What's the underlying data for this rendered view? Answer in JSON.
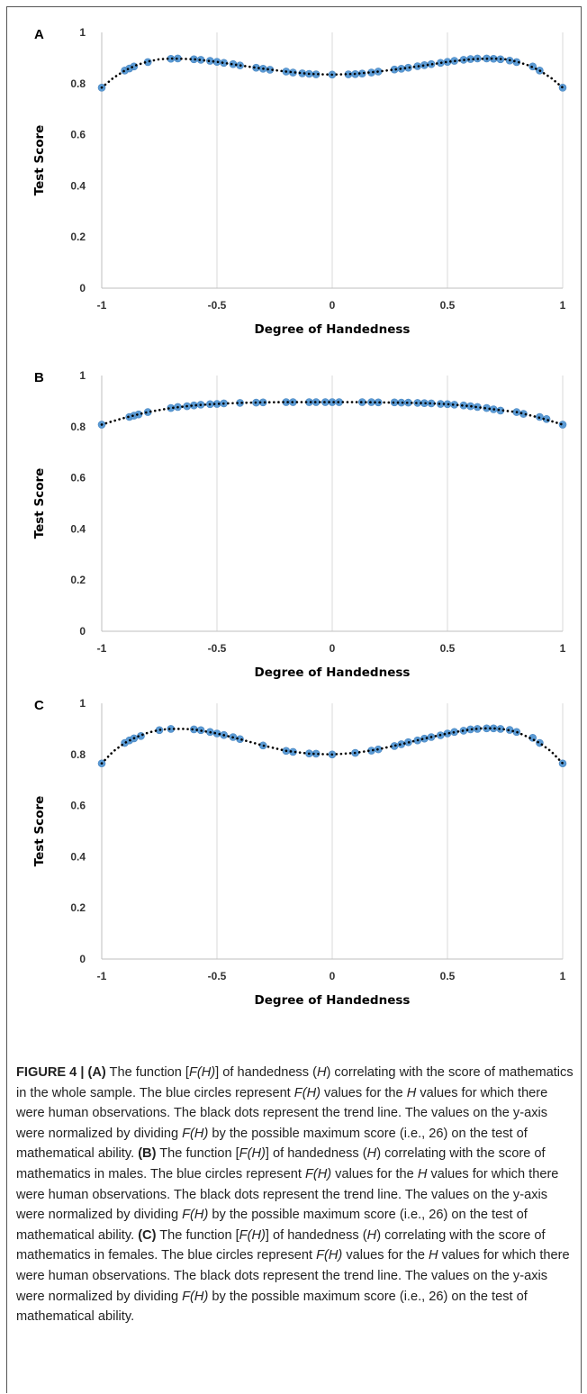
{
  "figure_number_label": "FIGURE 4 |",
  "caption": {
    "parts": [
      {
        "b": "FIGURE 4 | (A)"
      },
      {
        "t": " The function ["
      },
      {
        "i": "F(H)"
      },
      {
        "t": "] of handedness ("
      },
      {
        "i": "H"
      },
      {
        "t": ") correlating with the score of mathematics in the whole sample. The blue circles represent "
      },
      {
        "i": "F(H)"
      },
      {
        "t": " values for the "
      },
      {
        "i": "H"
      },
      {
        "t": " values for which there were human observations. The black dots represent the trend line. The values on the y-axis were normalized by dividing "
      },
      {
        "i": "F(H)"
      },
      {
        "t": " by the possible maximum score (i.e., 26) on the test of mathematical ability. "
      },
      {
        "b": "(B)"
      },
      {
        "t": " The function ["
      },
      {
        "i": "F(H)"
      },
      {
        "t": "] of handedness ("
      },
      {
        "i": "H"
      },
      {
        "t": ") correlating with the score of mathematics in males. The blue circles represent "
      },
      {
        "i": "F(H)"
      },
      {
        "t": " values for the "
      },
      {
        "i": "H"
      },
      {
        "t": " values for which there were human observations. The black dots represent the trend line. The values on the y-axis were normalized by dividing "
      },
      {
        "i": "F(H)"
      },
      {
        "t": " by the possible maximum score (i.e., 26) on the test of mathematical ability. "
      },
      {
        "b": "(C)"
      },
      {
        "t": " The function ["
      },
      {
        "i": "F(H)"
      },
      {
        "t": "] of handedness ("
      },
      {
        "i": "H"
      },
      {
        "t": ") correlating with the score of mathematics in females. The blue circles represent "
      },
      {
        "i": "F(H)"
      },
      {
        "t": " values for the "
      },
      {
        "i": "H"
      },
      {
        "t": " values for which there were human observations. The black dots represent the trend line. The values on the y-axis were normalized by dividing "
      },
      {
        "i": "F(H)"
      },
      {
        "t": " by the possible maximum score (i.e., 26) on the test of mathematical ability."
      }
    ]
  },
  "colors": {
    "observation": "#5b9bd5",
    "trend": "#000000",
    "grid": "#d9d9d9",
    "axis": "#bfbfbf"
  },
  "chart_data": [
    {
      "panel": "A",
      "type": "scatter",
      "xlabel": "Degree of Handedness",
      "ylabel": "Test Score",
      "xlim": [
        -1,
        1
      ],
      "ylim": [
        0,
        1
      ],
      "x_ticks": [
        "-1",
        "-0.5",
        "0",
        "0.5",
        "1"
      ],
      "y_ticks": [
        "0",
        "0.2",
        "0.4",
        "0.6",
        "0.8",
        "1"
      ],
      "grid": "vertical",
      "series": [
        {
          "role": "observations",
          "marker": "blue-circle",
          "x": [
            -1,
            -0.9,
            -0.88,
            -0.86,
            -0.8,
            -0.7,
            -0.67,
            -0.6,
            -0.57,
            -0.53,
            -0.5,
            -0.47,
            -0.43,
            -0.4,
            -0.33,
            -0.3,
            -0.27,
            -0.2,
            -0.17,
            -0.13,
            -0.1,
            -0.07,
            0,
            0.07,
            0.1,
            0.13,
            0.17,
            0.2,
            0.27,
            0.3,
            0.33,
            0.37,
            0.4,
            0.43,
            0.47,
            0.5,
            0.53,
            0.57,
            0.6,
            0.63,
            0.67,
            0.7,
            0.73,
            0.77,
            0.8,
            0.87,
            0.9,
            1
          ],
          "y": [
            0.784,
            0.851,
            0.859,
            0.867,
            0.884,
            0.897,
            0.898,
            0.895,
            0.893,
            0.889,
            0.885,
            0.881,
            0.876,
            0.871,
            0.862,
            0.858,
            0.854,
            0.847,
            0.843,
            0.84,
            0.838,
            0.836,
            0.835,
            0.836,
            0.837,
            0.839,
            0.843,
            0.847,
            0.855,
            0.858,
            0.862,
            0.868,
            0.872,
            0.876,
            0.881,
            0.885,
            0.889,
            0.893,
            0.896,
            0.898,
            0.898,
            0.897,
            0.895,
            0.89,
            0.884,
            0.867,
            0.851,
            0.784
          ]
        },
        {
          "role": "trend",
          "marker": "black-dots",
          "x": [
            -1,
            -0.95,
            -0.9,
            -0.85,
            -0.8,
            -0.75,
            -0.7,
            -0.65,
            -0.6,
            -0.5,
            -0.4,
            -0.3,
            -0.2,
            -0.1,
            0,
            0.1,
            0.2,
            0.3,
            0.4,
            0.5,
            0.6,
            0.65,
            0.7,
            0.75,
            0.8,
            0.85,
            0.9,
            0.95,
            1
          ],
          "y": [
            0.784,
            0.822,
            0.851,
            0.872,
            0.886,
            0.895,
            0.898,
            0.897,
            0.895,
            0.885,
            0.871,
            0.858,
            0.847,
            0.838,
            0.835,
            0.838,
            0.847,
            0.858,
            0.871,
            0.885,
            0.895,
            0.897,
            0.898,
            0.895,
            0.886,
            0.872,
            0.851,
            0.822,
            0.784
          ]
        }
      ]
    },
    {
      "panel": "B",
      "type": "scatter",
      "xlabel": "Degree of Handedness",
      "ylabel": "Test Score",
      "xlim": [
        -1,
        1
      ],
      "ylim": [
        0,
        1
      ],
      "x_ticks": [
        "-1",
        "-0.5",
        "0",
        "0.5",
        "1"
      ],
      "y_ticks": [
        "0",
        "0.2",
        "0.4",
        "0.6",
        "0.8",
        "1"
      ],
      "grid": "vertical",
      "series": [
        {
          "role": "observations",
          "marker": "blue-circle",
          "x": [
            -1,
            -0.88,
            -0.86,
            -0.84,
            -0.8,
            -0.7,
            -0.67,
            -0.63,
            -0.6,
            -0.57,
            -0.53,
            -0.5,
            -0.47,
            -0.4,
            -0.33,
            -0.3,
            -0.2,
            -0.17,
            -0.1,
            -0.07,
            -0.03,
            0,
            0.03,
            0.13,
            0.17,
            0.2,
            0.27,
            0.3,
            0.33,
            0.37,
            0.4,
            0.43,
            0.47,
            0.5,
            0.53,
            0.57,
            0.6,
            0.63,
            0.67,
            0.7,
            0.73,
            0.8,
            0.83,
            0.9,
            0.93,
            1
          ],
          "y": [
            0.808,
            0.838,
            0.843,
            0.848,
            0.857,
            0.873,
            0.877,
            0.88,
            0.883,
            0.886,
            0.888,
            0.889,
            0.891,
            0.893,
            0.894,
            0.895,
            0.896,
            0.896,
            0.896,
            0.896,
            0.896,
            0.896,
            0.896,
            0.896,
            0.896,
            0.895,
            0.895,
            0.894,
            0.894,
            0.893,
            0.892,
            0.891,
            0.889,
            0.888,
            0.886,
            0.883,
            0.88,
            0.877,
            0.873,
            0.868,
            0.863,
            0.857,
            0.85,
            0.838,
            0.83,
            0.808
          ]
        },
        {
          "role": "trend",
          "marker": "black-dots",
          "x": [
            -1,
            -0.95,
            -0.9,
            -0.85,
            -0.8,
            -0.7,
            -0.6,
            -0.5,
            -0.4,
            -0.3,
            -0.2,
            -0.1,
            0,
            0.1,
            0.2,
            0.3,
            0.4,
            0.5,
            0.6,
            0.7,
            0.8,
            0.85,
            0.9,
            0.95,
            1
          ],
          "y": [
            0.808,
            0.822,
            0.835,
            0.846,
            0.857,
            0.873,
            0.883,
            0.889,
            0.893,
            0.895,
            0.896,
            0.896,
            0.896,
            0.896,
            0.895,
            0.894,
            0.892,
            0.888,
            0.88,
            0.868,
            0.857,
            0.846,
            0.835,
            0.822,
            0.808
          ]
        }
      ]
    },
    {
      "panel": "C",
      "type": "scatter",
      "xlabel": "Degree of Handedness",
      "ylabel": "Test Score",
      "xlim": [
        -1,
        1
      ],
      "ylim": [
        0,
        1
      ],
      "x_ticks": [
        "-1",
        "-0.5",
        "0",
        "0.5",
        "1"
      ],
      "y_ticks": [
        "0",
        "0.2",
        "0.4",
        "0.6",
        "0.8",
        "1"
      ],
      "grid": "vertical",
      "series": [
        {
          "role": "observations",
          "marker": "blue-circle",
          "x": [
            -1,
            -0.9,
            -0.88,
            -0.86,
            -0.83,
            -0.75,
            -0.7,
            -0.6,
            -0.57,
            -0.53,
            -0.5,
            -0.47,
            -0.43,
            -0.4,
            -0.3,
            -0.2,
            -0.17,
            -0.1,
            -0.07,
            0,
            0.1,
            0.17,
            0.2,
            0.27,
            0.3,
            0.33,
            0.37,
            0.4,
            0.43,
            0.47,
            0.5,
            0.53,
            0.57,
            0.6,
            0.63,
            0.67,
            0.7,
            0.73,
            0.77,
            0.8,
            0.87,
            0.9,
            1
          ],
          "y": [
            0.765,
            0.845,
            0.855,
            0.863,
            0.872,
            0.895,
            0.9,
            0.898,
            0.895,
            0.888,
            0.882,
            0.876,
            0.868,
            0.86,
            0.835,
            0.814,
            0.81,
            0.804,
            0.803,
            0.8,
            0.806,
            0.815,
            0.82,
            0.833,
            0.84,
            0.848,
            0.855,
            0.862,
            0.868,
            0.875,
            0.882,
            0.888,
            0.893,
            0.898,
            0.9,
            0.902,
            0.902,
            0.9,
            0.896,
            0.888,
            0.865,
            0.845,
            0.765
          ]
        },
        {
          "role": "trend",
          "marker": "black-dots",
          "x": [
            -1,
            -0.95,
            -0.9,
            -0.85,
            -0.8,
            -0.75,
            -0.7,
            -0.65,
            -0.6,
            -0.5,
            -0.4,
            -0.3,
            -0.2,
            -0.1,
            0,
            0.1,
            0.2,
            0.3,
            0.4,
            0.5,
            0.6,
            0.65,
            0.7,
            0.75,
            0.8,
            0.85,
            0.9,
            0.95,
            1
          ],
          "y": [
            0.765,
            0.812,
            0.845,
            0.868,
            0.885,
            0.896,
            0.9,
            0.9,
            0.898,
            0.882,
            0.86,
            0.835,
            0.814,
            0.803,
            0.8,
            0.806,
            0.82,
            0.84,
            0.862,
            0.882,
            0.898,
            0.902,
            0.902,
            0.898,
            0.888,
            0.868,
            0.845,
            0.812,
            0.765
          ]
        }
      ]
    }
  ]
}
